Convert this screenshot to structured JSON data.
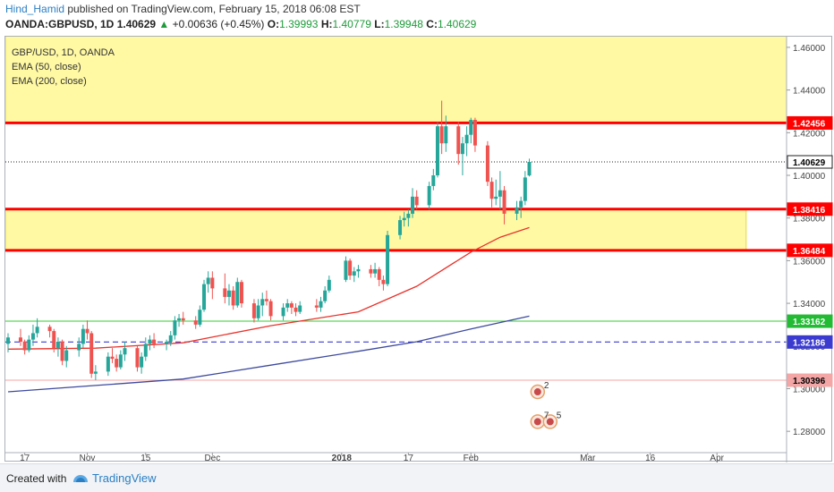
{
  "header": {
    "username": "Hind_Hamid",
    "published_text": "published on TradingView.com, February 15, 2018 06:08 EST",
    "symbol": "OANDA:GBPUSD, 1D",
    "last_price": "1.40629",
    "change_arrow": "▲",
    "change": "+0.00636 (+0.45%)",
    "o_label": "O:",
    "o_value": "1.39993",
    "h_label": "H:",
    "h_value": "1.40779",
    "l_label": "L:",
    "l_value": "1.39948",
    "c_label": "C:",
    "c_value": "1.40629"
  },
  "legend": {
    "title": "GBP/USD, 1D, OANDA",
    "ema50": "EMA (50, close)",
    "ema200": "EMA (200, close)"
  },
  "footer": {
    "created_with": "Created with",
    "brand": "TradingView"
  },
  "colors": {
    "up": "#26a69a",
    "down": "#ef5350",
    "ema50": "#e8322b",
    "ema200": "#3d4a9e",
    "zone": "#fff78a",
    "resistance": "#ff0000",
    "green_level": "#33cc33",
    "dashed_level": "#3b3bd0",
    "pink_level": "#f4a6a6"
  },
  "chart_data": {
    "type": "candlestick",
    "title": "GBP/USD, 1D, OANDA",
    "ylim": [
      1.27,
      1.465
    ],
    "y_ticks": [
      "1.46000",
      "1.44000",
      "1.42000",
      "1.40000",
      "1.38000",
      "1.36000",
      "1.34000",
      "1.32000",
      "1.30000",
      "1.28000"
    ],
    "x_ticks": [
      "17",
      "Nov",
      "15",
      "Dec",
      "2018",
      "17",
      "Feb",
      "Mar",
      "16",
      "Apr"
    ],
    "candles": [
      {
        "date": "2017-10-13",
        "o": 1.321,
        "h": 1.326,
        "l": 1.317,
        "c": 1.324
      },
      {
        "date": "2017-10-16",
        "o": 1.324,
        "h": 1.328,
        "l": 1.32,
        "c": 1.322
      },
      {
        "date": "2017-10-17",
        "o": 1.322,
        "h": 1.323,
        "l": 1.316,
        "c": 1.318
      },
      {
        "date": "2017-10-18",
        "o": 1.318,
        "h": 1.325,
        "l": 1.317,
        "c": 1.323
      },
      {
        "date": "2017-10-19",
        "o": 1.323,
        "h": 1.33,
        "l": 1.32,
        "c": 1.326
      },
      {
        "date": "2017-10-20",
        "o": 1.326,
        "h": 1.333,
        "l": 1.324,
        "c": 1.329
      },
      {
        "date": "2017-10-23",
        "o": 1.329,
        "h": 1.33,
        "l": 1.324,
        "c": 1.327
      },
      {
        "date": "2017-10-24",
        "o": 1.327,
        "h": 1.328,
        "l": 1.317,
        "c": 1.319
      },
      {
        "date": "2017-10-25",
        "o": 1.319,
        "h": 1.324,
        "l": 1.315,
        "c": 1.322
      },
      {
        "date": "2017-10-26",
        "o": 1.322,
        "h": 1.323,
        "l": 1.311,
        "c": 1.313
      },
      {
        "date": "2017-10-27",
        "o": 1.313,
        "h": 1.32,
        "l": 1.31,
        "c": 1.318
      },
      {
        "date": "2017-10-30",
        "o": 1.318,
        "h": 1.324,
        "l": 1.315,
        "c": 1.321
      },
      {
        "date": "2017-10-31",
        "o": 1.321,
        "h": 1.33,
        "l": 1.319,
        "c": 1.328
      },
      {
        "date": "2017-11-01",
        "o": 1.328,
        "h": 1.332,
        "l": 1.323,
        "c": 1.326
      },
      {
        "date": "2017-11-02",
        "o": 1.326,
        "h": 1.327,
        "l": 1.305,
        "c": 1.307
      },
      {
        "date": "2017-11-03",
        "o": 1.307,
        "h": 1.311,
        "l": 1.304,
        "c": 1.308
      },
      {
        "date": "2017-11-06",
        "o": 1.308,
        "h": 1.317,
        "l": 1.306,
        "c": 1.315
      },
      {
        "date": "2017-11-07",
        "o": 1.315,
        "h": 1.319,
        "l": 1.312,
        "c": 1.314
      },
      {
        "date": "2017-11-08",
        "o": 1.314,
        "h": 1.316,
        "l": 1.308,
        "c": 1.31
      },
      {
        "date": "2017-11-09",
        "o": 1.31,
        "h": 1.318,
        "l": 1.309,
        "c": 1.316
      },
      {
        "date": "2017-11-10",
        "o": 1.316,
        "h": 1.322,
        "l": 1.313,
        "c": 1.319
      },
      {
        "date": "2017-11-13",
        "o": 1.319,
        "h": 1.32,
        "l": 1.308,
        "c": 1.31
      },
      {
        "date": "2017-11-14",
        "o": 1.31,
        "h": 1.317,
        "l": 1.307,
        "c": 1.315
      },
      {
        "date": "2017-11-15",
        "o": 1.315,
        "h": 1.324,
        "l": 1.313,
        "c": 1.321
      },
      {
        "date": "2017-11-16",
        "o": 1.321,
        "h": 1.325,
        "l": 1.318,
        "c": 1.323
      },
      {
        "date": "2017-11-17",
        "o": 1.323,
        "h": 1.326,
        "l": 1.319,
        "c": 1.321
      },
      {
        "date": "2017-11-20",
        "o": 1.321,
        "h": 1.323,
        "l": 1.318,
        "c": 1.322
      },
      {
        "date": "2017-11-21",
        "o": 1.322,
        "h": 1.327,
        "l": 1.32,
        "c": 1.325
      },
      {
        "date": "2017-11-22",
        "o": 1.325,
        "h": 1.334,
        "l": 1.323,
        "c": 1.332
      },
      {
        "date": "2017-11-23",
        "o": 1.332,
        "h": 1.335,
        "l": 1.329,
        "c": 1.333
      },
      {
        "date": "2017-11-24",
        "o": 1.333,
        "h": 1.336,
        "l": 1.33,
        "c": 1.332
      },
      {
        "date": "2017-11-27",
        "o": 1.332,
        "h": 1.334,
        "l": 1.328,
        "c": 1.33
      },
      {
        "date": "2017-11-28",
        "o": 1.33,
        "h": 1.339,
        "l": 1.329,
        "c": 1.337
      },
      {
        "date": "2017-11-29",
        "o": 1.337,
        "h": 1.351,
        "l": 1.336,
        "c": 1.349
      },
      {
        "date": "2017-11-30",
        "o": 1.349,
        "h": 1.355,
        "l": 1.345,
        "c": 1.352
      },
      {
        "date": "2017-12-01",
        "o": 1.352,
        "h": 1.355,
        "l": 1.342,
        "c": 1.347
      },
      {
        "date": "2017-12-04",
        "o": 1.347,
        "h": 1.354,
        "l": 1.34,
        "c": 1.343
      },
      {
        "date": "2017-12-05",
        "o": 1.343,
        "h": 1.349,
        "l": 1.339,
        "c": 1.346
      },
      {
        "date": "2017-12-06",
        "o": 1.346,
        "h": 1.348,
        "l": 1.337,
        "c": 1.339
      },
      {
        "date": "2017-12-07",
        "o": 1.339,
        "h": 1.352,
        "l": 1.338,
        "c": 1.35
      },
      {
        "date": "2017-12-08",
        "o": 1.35,
        "h": 1.351,
        "l": 1.338,
        "c": 1.34
      },
      {
        "date": "2017-12-11",
        "o": 1.34,
        "h": 1.342,
        "l": 1.331,
        "c": 1.333
      },
      {
        "date": "2017-12-12",
        "o": 1.333,
        "h": 1.342,
        "l": 1.332,
        "c": 1.339
      },
      {
        "date": "2017-12-13",
        "o": 1.339,
        "h": 1.345,
        "l": 1.334,
        "c": 1.342
      },
      {
        "date": "2017-12-14",
        "o": 1.342,
        "h": 1.346,
        "l": 1.339,
        "c": 1.341
      },
      {
        "date": "2017-12-15",
        "o": 1.341,
        "h": 1.342,
        "l": 1.332,
        "c": 1.334
      },
      {
        "date": "2017-12-18",
        "o": 1.334,
        "h": 1.34,
        "l": 1.332,
        "c": 1.338
      },
      {
        "date": "2017-12-19",
        "o": 1.338,
        "h": 1.342,
        "l": 1.336,
        "c": 1.34
      },
      {
        "date": "2017-12-20",
        "o": 1.34,
        "h": 1.341,
        "l": 1.335,
        "c": 1.338
      },
      {
        "date": "2017-12-21",
        "o": 1.338,
        "h": 1.34,
        "l": 1.334,
        "c": 1.336
      },
      {
        "date": "2017-12-22",
        "o": 1.336,
        "h": 1.341,
        "l": 1.335,
        "c": 1.339
      },
      {
        "date": "2017-12-26",
        "o": 1.339,
        "h": 1.342,
        "l": 1.336,
        "c": 1.338
      },
      {
        "date": "2017-12-27",
        "o": 1.338,
        "h": 1.343,
        "l": 1.336,
        "c": 1.341
      },
      {
        "date": "2017-12-28",
        "o": 1.341,
        "h": 1.348,
        "l": 1.34,
        "c": 1.346
      },
      {
        "date": "2017-12-29",
        "o": 1.346,
        "h": 1.353,
        "l": 1.345,
        "c": 1.351
      },
      {
        "date": "2018-01-02",
        "o": 1.351,
        "h": 1.362,
        "l": 1.35,
        "c": 1.36
      },
      {
        "date": "2018-01-03",
        "o": 1.36,
        "h": 1.361,
        "l": 1.351,
        "c": 1.353
      },
      {
        "date": "2018-01-04",
        "o": 1.353,
        "h": 1.357,
        "l": 1.35,
        "c": 1.355
      },
      {
        "date": "2018-01-05",
        "o": 1.355,
        "h": 1.358,
        "l": 1.352,
        "c": 1.356
      },
      {
        "date": "2018-01-08",
        "o": 1.356,
        "h": 1.358,
        "l": 1.352,
        "c": 1.354
      },
      {
        "date": "2018-01-09",
        "o": 1.354,
        "h": 1.359,
        "l": 1.352,
        "c": 1.356
      },
      {
        "date": "2018-01-10",
        "o": 1.356,
        "h": 1.357,
        "l": 1.348,
        "c": 1.351
      },
      {
        "date": "2018-01-11",
        "o": 1.351,
        "h": 1.353,
        "l": 1.346,
        "c": 1.349
      },
      {
        "date": "2018-01-12",
        "o": 1.349,
        "h": 1.374,
        "l": 1.348,
        "c": 1.372
      },
      {
        "date": "2018-01-15",
        "o": 1.372,
        "h": 1.381,
        "l": 1.37,
        "c": 1.379
      },
      {
        "date": "2018-01-16",
        "o": 1.379,
        "h": 1.383,
        "l": 1.376,
        "c": 1.38
      },
      {
        "date": "2018-01-17",
        "o": 1.38,
        "h": 1.384,
        "l": 1.376,
        "c": 1.382
      },
      {
        "date": "2018-01-18",
        "o": 1.382,
        "h": 1.394,
        "l": 1.38,
        "c": 1.39
      },
      {
        "date": "2018-01-19",
        "o": 1.39,
        "h": 1.393,
        "l": 1.384,
        "c": 1.386
      },
      {
        "date": "2018-01-22",
        "o": 1.386,
        "h": 1.397,
        "l": 1.384,
        "c": 1.395
      },
      {
        "date": "2018-01-23",
        "o": 1.395,
        "h": 1.403,
        "l": 1.393,
        "c": 1.4
      },
      {
        "date": "2018-01-24",
        "o": 1.4,
        "h": 1.425,
        "l": 1.399,
        "c": 1.423
      },
      {
        "date": "2018-01-25",
        "o": 1.423,
        "h": 1.435,
        "l": 1.41,
        "c": 1.415
      },
      {
        "date": "2018-01-26",
        "o": 1.415,
        "h": 1.428,
        "l": 1.411,
        "c": 1.423
      },
      {
        "date": "2018-01-29",
        "o": 1.423,
        "h": 1.425,
        "l": 1.405,
        "c": 1.41
      },
      {
        "date": "2018-01-30",
        "o": 1.41,
        "h": 1.418,
        "l": 1.4,
        "c": 1.415
      },
      {
        "date": "2018-01-31",
        "o": 1.415,
        "h": 1.423,
        "l": 1.409,
        "c": 1.419
      },
      {
        "date": "2018-02-01",
        "o": 1.419,
        "h": 1.427,
        "l": 1.415,
        "c": 1.426
      },
      {
        "date": "2018-02-02",
        "o": 1.426,
        "h": 1.427,
        "l": 1.411,
        "c": 1.414
      },
      {
        "date": "2018-02-05",
        "o": 1.414,
        "h": 1.416,
        "l": 1.395,
        "c": 1.397
      },
      {
        "date": "2018-02-06",
        "o": 1.397,
        "h": 1.399,
        "l": 1.385,
        "c": 1.389
      },
      {
        "date": "2018-02-07",
        "o": 1.389,
        "h": 1.398,
        "l": 1.386,
        "c": 1.39
      },
      {
        "date": "2018-02-08",
        "o": 1.39,
        "h": 1.402,
        "l": 1.384,
        "c": 1.393
      },
      {
        "date": "2018-02-09",
        "o": 1.393,
        "h": 1.395,
        "l": 1.377,
        "c": 1.382
      },
      {
        "date": "2018-02-12",
        "o": 1.382,
        "h": 1.388,
        "l": 1.379,
        "c": 1.385
      },
      {
        "date": "2018-02-13",
        "o": 1.385,
        "h": 1.39,
        "l": 1.38,
        "c": 1.388
      },
      {
        "date": "2018-02-14",
        "o": 1.388,
        "h": 1.402,
        "l": 1.386,
        "c": 1.399
      },
      {
        "date": "2018-02-15",
        "o": 1.39993,
        "h": 1.40779,
        "l": 1.39948,
        "c": 1.40629
      }
    ],
    "ema50": [
      {
        "date": "2017-10-13",
        "v": 1.3185
      },
      {
        "date": "2017-11-03",
        "v": 1.319
      },
      {
        "date": "2017-11-24",
        "v": 1.3215
      },
      {
        "date": "2017-12-15",
        "v": 1.3295
      },
      {
        "date": "2018-01-05",
        "v": 1.336
      },
      {
        "date": "2018-01-19",
        "v": 1.348
      },
      {
        "date": "2018-02-01",
        "v": 1.364
      },
      {
        "date": "2018-02-08",
        "v": 1.371
      },
      {
        "date": "2018-02-15",
        "v": 1.3755
      }
    ],
    "ema200": [
      {
        "date": "2017-10-13",
        "v": 1.2985
      },
      {
        "date": "2017-11-03",
        "v": 1.3015
      },
      {
        "date": "2017-11-24",
        "v": 1.3045
      },
      {
        "date": "2017-12-15",
        "v": 1.311
      },
      {
        "date": "2018-01-05",
        "v": 1.3175
      },
      {
        "date": "2018-01-19",
        "v": 1.322
      },
      {
        "date": "2018-02-01",
        "v": 1.328
      },
      {
        "date": "2018-02-15",
        "v": 1.334
      }
    ],
    "zones": [
      {
        "from": 1.4245,
        "to": 1.47,
        "end": "right"
      },
      {
        "from": 1.36484,
        "to": 1.38416,
        "end": "2018-04-08"
      }
    ],
    "levels": [
      {
        "value": 1.42456,
        "label": "1.42456",
        "style": "red-thick"
      },
      {
        "value": 1.40629,
        "label": "1.40629",
        "style": "black-dotted"
      },
      {
        "value": 1.38416,
        "label": "1.38416",
        "style": "red-thick"
      },
      {
        "value": 1.36484,
        "label": "1.36484",
        "style": "red-thick"
      },
      {
        "value": 1.33162,
        "label": "1.33162",
        "style": "green"
      },
      {
        "value": 1.32186,
        "label": "1.32186",
        "style": "blue-dashed"
      },
      {
        "value": 1.30396,
        "label": "1.30396",
        "style": "pink"
      }
    ],
    "event_markers": [
      {
        "date": "2018-02-17",
        "value": 1.2985,
        "label": "2"
      },
      {
        "date": "2018-02-17",
        "value": 1.2845,
        "label": "7"
      },
      {
        "date": "2018-02-20",
        "value": 1.2845,
        "label": "5"
      }
    ]
  }
}
